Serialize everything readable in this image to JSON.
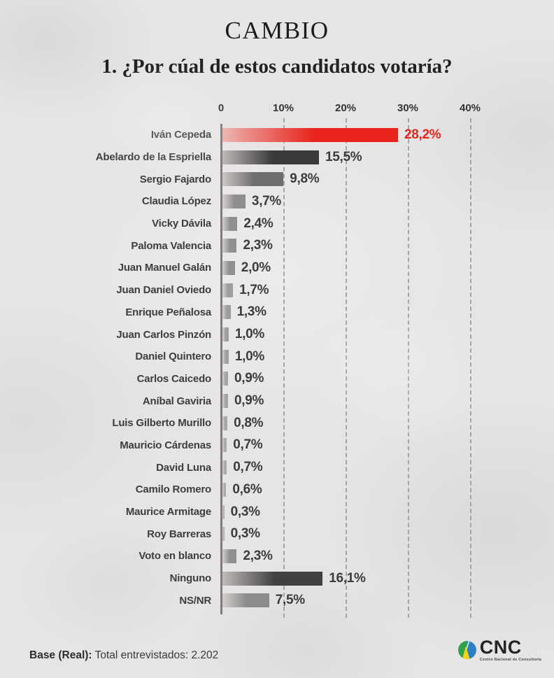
{
  "header": {
    "brand": "CAMBIO",
    "question": "1. ¿Por cúal de estos candidatos votaría?"
  },
  "chart_data": {
    "type": "bar",
    "orientation": "horizontal",
    "title": "1. ¿Por cúal de estos candidatos votaría?",
    "categories": [
      "Iván Cepeda",
      "Abelardo de la Espriella",
      "Sergio Fajardo",
      "Claudia López",
      "Vicky Dávila",
      "Paloma Valencia",
      "Juan Manuel Galán",
      "Juan Daniel Oviedo",
      "Enrique Peñalosa",
      "Juan Carlos Pinzón",
      "Daniel Quintero",
      "Carlos Caicedo",
      "Aníbal Gaviria",
      "Luis Gilberto Murillo",
      "Mauricio Cárdenas",
      "David Luna",
      "Camilo Romero",
      "Maurice Armitage",
      "Roy Barreras",
      "Voto en blanco",
      "Ninguno",
      "NS/NR"
    ],
    "values": [
      28.2,
      15.5,
      9.8,
      3.7,
      2.4,
      2.3,
      2.0,
      1.7,
      1.3,
      1.0,
      1.0,
      0.9,
      0.9,
      0.8,
      0.7,
      0.7,
      0.6,
      0.3,
      0.3,
      2.3,
      16.1,
      7.5
    ],
    "value_labels": [
      "28,2%",
      "15,5%",
      "9,8%",
      "3,7%",
      "2,4%",
      "2,3%",
      "2,0%",
      "1,7%",
      "1,3%",
      "1,0%",
      "1,0%",
      "0,9%",
      "0,9%",
      "0,8%",
      "0,7%",
      "0,7%",
      "0,6%",
      "0,3%",
      "0,3%",
      "2,3%",
      "16,1%",
      "7,5%"
    ],
    "bar_colors": [
      "#e8241c",
      "#3a3a3a",
      "#6e6e6e",
      "#8e8e8e",
      "#8f8f8f",
      "#909090",
      "#8f8f8f",
      "#9d9d9d",
      "#9c9c9c",
      "#9d9d9d",
      "#9f9f9f",
      "#a3a3a3",
      "#a3a3a3",
      "#a6a6a6",
      "#a9a9a9",
      "#a9a9a9",
      "#ababab",
      "#b1b1b1",
      "#b1b1b1",
      "#8f8f8f",
      "#414141",
      "#8b8b8b"
    ],
    "value_text_default_color": "#3c3c3c",
    "highlighted_value": {
      "index": 0,
      "color": "#e8241c"
    },
    "xlim": [
      0,
      40
    ],
    "x_ticks": [
      {
        "label": "0",
        "pct": 0
      },
      {
        "label": "10%",
        "pct": 10
      },
      {
        "label": "20%",
        "pct": 20
      },
      {
        "label": "30%",
        "pct": 30
      },
      {
        "label": "40%",
        "pct": 40
      }
    ],
    "grid": "dashed-vertical",
    "legend": "none"
  },
  "footer": {
    "base_label": "Base (Real):",
    "base_value": " Total entrevistados: 2.202"
  },
  "logo": {
    "text": "CNC",
    "subtext": "Centro Nacional de Consultoría",
    "green": "#2fa14b",
    "blue": "#2b80c4",
    "yellow": "#f2d511"
  }
}
